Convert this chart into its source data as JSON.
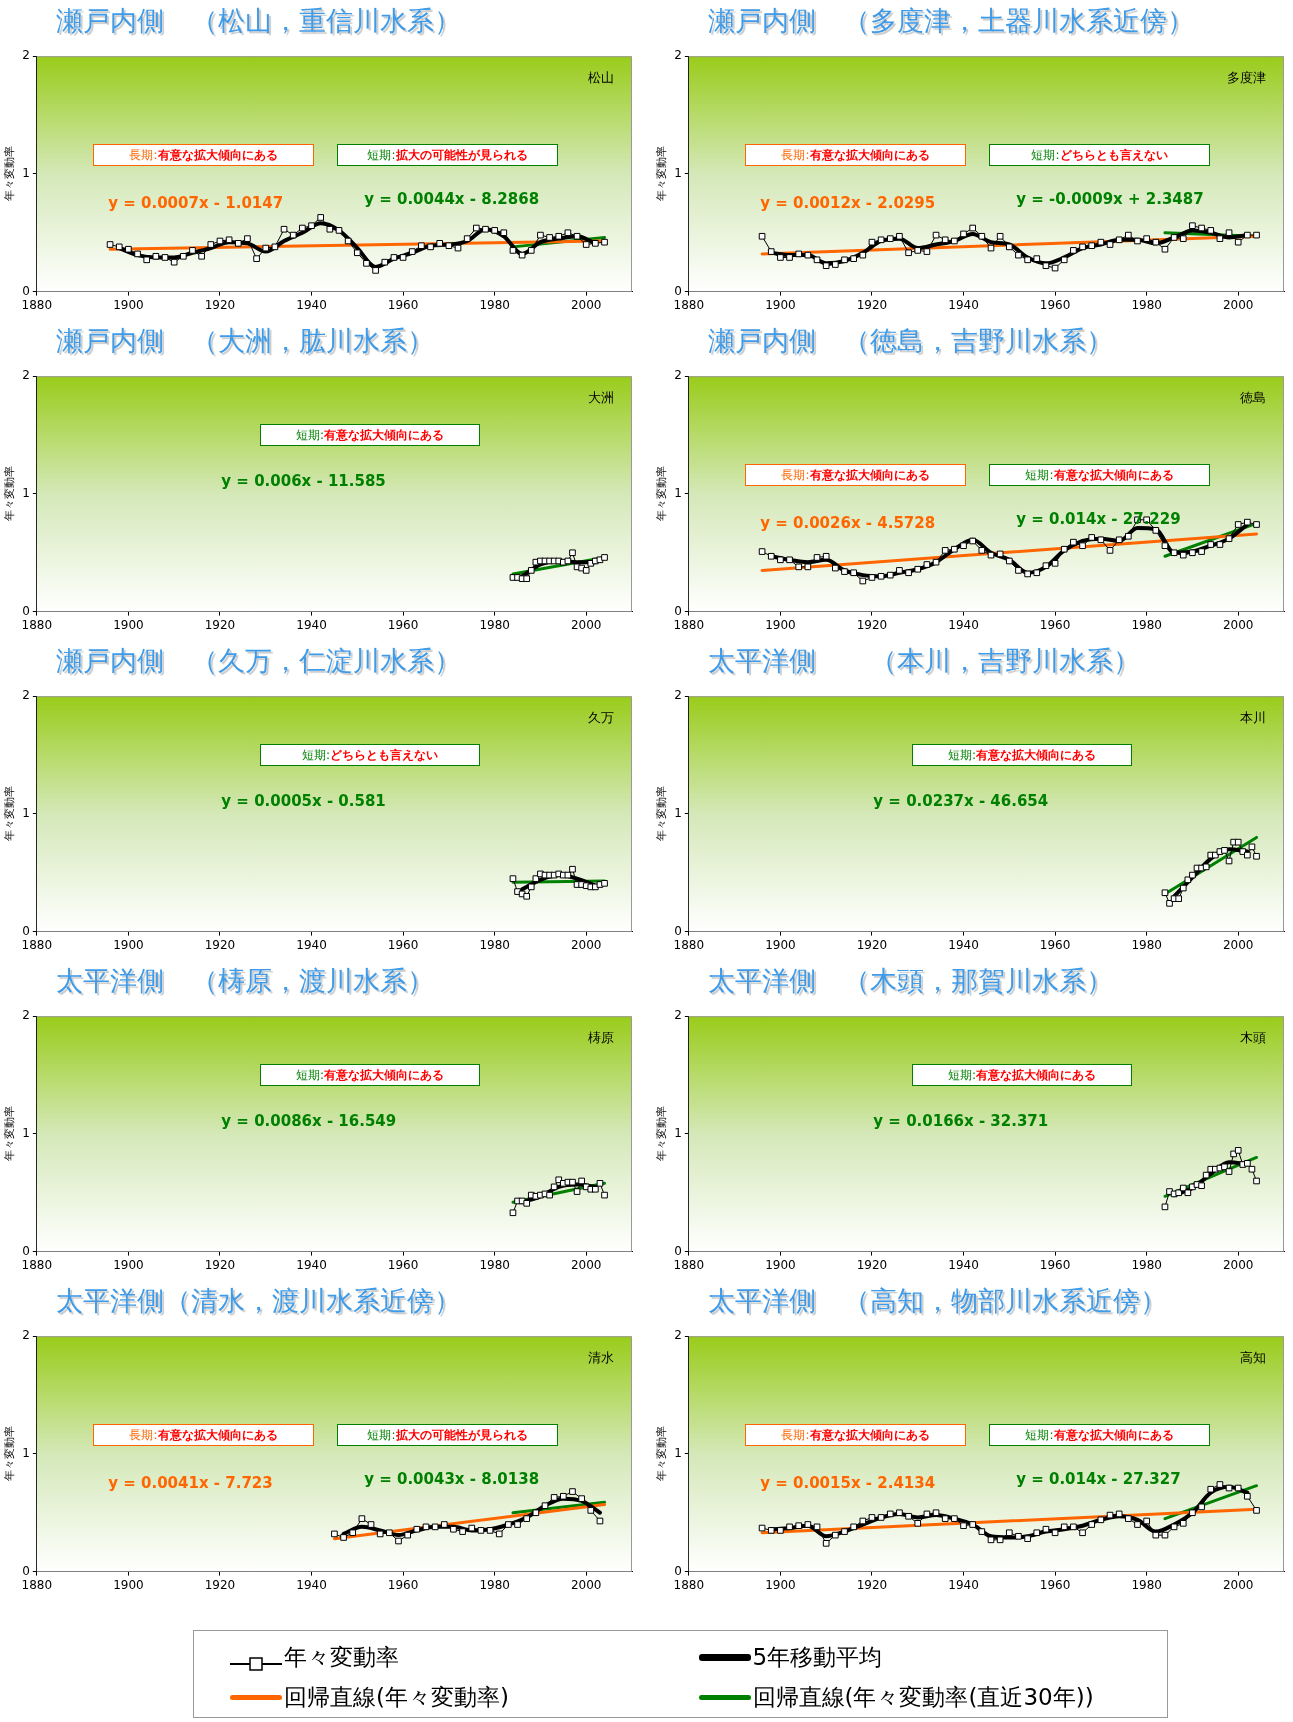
{
  "chart_data": [
    {
      "type": "line",
      "title": "瀬戸内側　（松山，重信川水系）",
      "ylabel": "年々変動率",
      "xlim": [
        1880,
        2010
      ],
      "xticks": [
        1880,
        1900,
        1920,
        1940,
        1960,
        1980,
        2000
      ],
      "ylim": [
        0,
        2
      ],
      "yticks": [
        0,
        1,
        2
      ],
      "grid": false,
      "annotations": [
        "松山",
        "長期:有意な拡大傾向にある",
        "短期:拡大の可能性が見られる",
        "y = 0.0007x - 1.0147",
        "y = 0.0044x - 8.2868"
      ],
      "series": [
        {
          "color": "#000000",
          "marker": "square",
          "x": [
            1896,
            1898,
            1900,
            1902,
            1904,
            1906,
            1908,
            1910,
            1912,
            1914,
            1916,
            1918,
            1920,
            1922,
            1924,
            1926,
            1928,
            1930,
            1932,
            1934,
            1936,
            1938,
            1940,
            1942,
            1944,
            1946,
            1948,
            1950,
            1952,
            1954,
            1956,
            1958,
            1960,
            1962,
            1964,
            1966,
            1968,
            1970,
            1972,
            1974,
            1976,
            1978,
            1980,
            1982,
            1984,
            1986,
            1988,
            1990,
            1992,
            1994,
            1996,
            1998,
            2000,
            2002,
            2004
          ],
          "values": [
            0.4,
            0.38,
            0.36,
            0.32,
            0.27,
            0.3,
            0.29,
            0.25,
            0.3,
            0.35,
            0.3,
            0.4,
            0.43,
            0.44,
            0.41,
            0.45,
            0.28,
            0.37,
            0.38,
            0.53,
            0.48,
            0.54,
            0.56,
            0.63,
            0.53,
            0.52,
            0.43,
            0.33,
            0.24,
            0.18,
            0.25,
            0.29,
            0.29,
            0.34,
            0.39,
            0.38,
            0.41,
            0.39,
            0.37,
            0.45,
            0.54,
            0.53,
            0.52,
            0.5,
            0.35,
            0.31,
            0.35,
            0.48,
            0.46,
            0.47,
            0.5,
            0.47,
            0.4,
            0.41,
            0.42
          ]
        },
        {
          "color": "#000000",
          "marker": "none",
          "x": [
            1898,
            1902,
            1906,
            1910,
            1914,
            1918,
            1922,
            1926,
            1930,
            1934,
            1938,
            1942,
            1946,
            1950,
            1954,
            1958,
            1962,
            1966,
            1970,
            1974,
            1978,
            1982,
            1986,
            1990,
            1994,
            1998,
            2002
          ],
          "values": [
            0.37,
            0.31,
            0.29,
            0.29,
            0.33,
            0.37,
            0.42,
            0.41,
            0.34,
            0.43,
            0.5,
            0.58,
            0.52,
            0.37,
            0.21,
            0.28,
            0.33,
            0.39,
            0.4,
            0.43,
            0.53,
            0.47,
            0.32,
            0.42,
            0.45,
            0.47,
            0.41
          ]
        },
        {
          "color": "#ff6600",
          "marker": "none",
          "x": [
            1896,
            2004
          ],
          "values": [
            0.36,
            0.43
          ]
        },
        {
          "color": "#008000",
          "marker": "none",
          "x": [
            1984,
            2004
          ],
          "values": [
            0.38,
            0.46
          ]
        }
      ]
    },
    {
      "type": "line",
      "title": "瀬戸内側　（多度津，土器川水系近傍）",
      "ylabel": "年々変動率",
      "xlim": [
        1880,
        2010
      ],
      "xticks": [
        1880,
        1900,
        1920,
        1940,
        1960,
        1980,
        2000
      ],
      "ylim": [
        0,
        2
      ],
      "yticks": [
        0,
        1,
        2
      ],
      "grid": false,
      "annotations": [
        "多度津",
        "長期:有意な拡大傾向にある",
        "短期:どちらとも言えない",
        "y = 0.0012x - 2.0295",
        "y = -0.0009x + 2.3487"
      ],
      "series": [
        {
          "color": "#000000",
          "marker": "square",
          "x": [
            1896,
            1898,
            1900,
            1902,
            1904,
            1906,
            1908,
            1910,
            1912,
            1914,
            1916,
            1918,
            1920,
            1922,
            1924,
            1926,
            1928,
            1930,
            1932,
            1934,
            1936,
            1938,
            1940,
            1942,
            1944,
            1946,
            1948,
            1950,
            1952,
            1954,
            1956,
            1958,
            1960,
            1962,
            1964,
            1966,
            1968,
            1970,
            1972,
            1974,
            1976,
            1978,
            1980,
            1982,
            1984,
            1986,
            1988,
            1990,
            1992,
            1994,
            1996,
            1998,
            2000,
            2002,
            2004
          ],
          "values": [
            0.47,
            0.34,
            0.29,
            0.29,
            0.32,
            0.31,
            0.27,
            0.22,
            0.23,
            0.27,
            0.28,
            0.31,
            0.42,
            0.44,
            0.45,
            0.47,
            0.33,
            0.35,
            0.34,
            0.48,
            0.44,
            0.43,
            0.49,
            0.54,
            0.47,
            0.37,
            0.47,
            0.38,
            0.31,
            0.27,
            0.28,
            0.22,
            0.2,
            0.27,
            0.35,
            0.38,
            0.39,
            0.42,
            0.4,
            0.44,
            0.48,
            0.43,
            0.45,
            0.42,
            0.36,
            0.46,
            0.45,
            0.56,
            0.54,
            0.52,
            0.45,
            0.5,
            0.42,
            0.48,
            0.48
          ]
        },
        {
          "color": "#000000",
          "marker": "none",
          "x": [
            1898,
            1902,
            1906,
            1910,
            1914,
            1918,
            1922,
            1926,
            1930,
            1934,
            1938,
            1942,
            1946,
            1950,
            1954,
            1958,
            1962,
            1966,
            1970,
            1974,
            1978,
            1982,
            1986,
            1990,
            1994,
            1998,
            2002
          ],
          "values": [
            0.33,
            0.31,
            0.31,
            0.24,
            0.26,
            0.33,
            0.43,
            0.45,
            0.37,
            0.4,
            0.43,
            0.49,
            0.42,
            0.4,
            0.29,
            0.24,
            0.29,
            0.37,
            0.4,
            0.44,
            0.44,
            0.41,
            0.46,
            0.52,
            0.5,
            0.46,
            0.48
          ]
        },
        {
          "color": "#ff6600",
          "marker": "none",
          "x": [
            1896,
            2004
          ],
          "values": [
            0.32,
            0.47
          ]
        },
        {
          "color": "#008000",
          "marker": "none",
          "x": [
            1984,
            2004
          ],
          "values": [
            0.5,
            0.47
          ]
        }
      ]
    },
    {
      "type": "line",
      "title": "瀬戸内側　（大洲，肱川水系）",
      "ylabel": "年々変動率",
      "xlim": [
        1880,
        2010
      ],
      "xticks": [
        1880,
        1900,
        1920,
        1940,
        1960,
        1980,
        2000
      ],
      "ylim": [
        0,
        2
      ],
      "yticks": [
        0,
        1,
        2
      ],
      "grid": false,
      "annotations": [
        "大洲",
        "短期:有意な拡大傾向にある",
        "y = 0.006x - 11.585"
      ],
      "series": [
        {
          "color": "#000000",
          "marker": "square",
          "x": [
            1984,
            1985,
            1986,
            1987,
            1988,
            1989,
            1990,
            1991,
            1992,
            1993,
            1994,
            1995,
            1996,
            1997,
            1998,
            1999,
            2000,
            2001,
            2002,
            2003,
            2004
          ],
          "values": [
            0.29,
            0.29,
            0.28,
            0.28,
            0.35,
            0.42,
            0.43,
            0.43,
            0.43,
            0.43,
            0.43,
            0.42,
            0.43,
            0.5,
            0.38,
            0.37,
            0.35,
            0.41,
            0.43,
            0.44,
            0.46
          ]
        },
        {
          "color": "#000000",
          "marker": "none",
          "x": [
            1986,
            1990,
            1994,
            1998,
            2002
          ],
          "values": [
            0.3,
            0.4,
            0.43,
            0.42,
            0.42
          ]
        },
        {
          "color": "#008000",
          "marker": "none",
          "x": [
            1984,
            2004
          ],
          "values": [
            0.32,
            0.46
          ]
        }
      ]
    },
    {
      "type": "line",
      "title": "瀬戸内側　（徳島，吉野川水系）",
      "ylabel": "年々変動率",
      "xlim": [
        1880,
        2010
      ],
      "xticks": [
        1880,
        1900,
        1920,
        1940,
        1960,
        1980,
        2000
      ],
      "ylim": [
        0,
        2
      ],
      "yticks": [
        0,
        1,
        2
      ],
      "grid": false,
      "annotations": [
        "徳島",
        "長期:有意な拡大傾向にある",
        "短期:有意な拡大傾向にある",
        "y = 0.0026x - 4.5728",
        "y = 0.014x - 27.229"
      ],
      "series": [
        {
          "color": "#000000",
          "marker": "square",
          "x": [
            1896,
            1898,
            1900,
            1902,
            1904,
            1906,
            1908,
            1910,
            1912,
            1914,
            1916,
            1918,
            1920,
            1922,
            1924,
            1926,
            1928,
            1930,
            1932,
            1934,
            1936,
            1938,
            1940,
            1942,
            1944,
            1946,
            1948,
            1950,
            1952,
            1954,
            1956,
            1958,
            1960,
            1962,
            1964,
            1966,
            1968,
            1970,
            1972,
            1974,
            1976,
            1978,
            1980,
            1982,
            1984,
            1986,
            1988,
            1990,
            1992,
            1994,
            1996,
            1998,
            2000,
            2002,
            2004
          ],
          "values": [
            0.51,
            0.47,
            0.44,
            0.44,
            0.38,
            0.38,
            0.46,
            0.47,
            0.37,
            0.34,
            0.33,
            0.26,
            0.29,
            0.3,
            0.31,
            0.35,
            0.33,
            0.36,
            0.4,
            0.42,
            0.52,
            0.53,
            0.56,
            0.6,
            0.52,
            0.48,
            0.49,
            0.43,
            0.35,
            0.32,
            0.33,
            0.39,
            0.41,
            0.53,
            0.59,
            0.56,
            0.63,
            0.61,
            0.52,
            0.61,
            0.64,
            0.78,
            0.78,
            0.69,
            0.56,
            0.5,
            0.48,
            0.5,
            0.51,
            0.57,
            0.57,
            0.62,
            0.74,
            0.76,
            0.74
          ]
        },
        {
          "color": "#000000",
          "marker": "none",
          "x": [
            1898,
            1902,
            1906,
            1910,
            1914,
            1918,
            1922,
            1926,
            1930,
            1934,
            1938,
            1942,
            1946,
            1950,
            1954,
            1958,
            1962,
            1966,
            1970,
            1974,
            1978,
            1982,
            1986,
            1990,
            1994,
            1998,
            2002
          ],
          "values": [
            0.47,
            0.44,
            0.42,
            0.44,
            0.35,
            0.31,
            0.3,
            0.33,
            0.36,
            0.42,
            0.53,
            0.61,
            0.5,
            0.44,
            0.33,
            0.38,
            0.52,
            0.6,
            0.62,
            0.6,
            0.71,
            0.7,
            0.5,
            0.51,
            0.56,
            0.62,
            0.74
          ]
        },
        {
          "color": "#ff6600",
          "marker": "none",
          "x": [
            1896,
            2004
          ],
          "values": [
            0.35,
            0.66
          ]
        },
        {
          "color": "#008000",
          "marker": "none",
          "x": [
            1984,
            2004
          ],
          "values": [
            0.47,
            0.75
          ]
        }
      ]
    },
    {
      "type": "line",
      "title": "瀬戸内側　（久万，仁淀川水系）",
      "ylabel": "年々変動率",
      "xlim": [
        1880,
        2010
      ],
      "xticks": [
        1880,
        1900,
        1920,
        1940,
        1960,
        1980,
        2000
      ],
      "ylim": [
        0,
        2
      ],
      "yticks": [
        0,
        1,
        2
      ],
      "grid": false,
      "annotations": [
        "久万",
        "短期:どちらとも言えない",
        "y = 0.0005x - 0.581"
      ],
      "series": [
        {
          "color": "#000000",
          "marker": "square",
          "x": [
            1984,
            1985,
            1986,
            1987,
            1988,
            1989,
            1990,
            1991,
            1992,
            1993,
            1994,
            1995,
            1996,
            1997,
            1998,
            1999,
            2000,
            2001,
            2002,
            2003,
            2004
          ],
          "values": [
            0.45,
            0.34,
            0.32,
            0.3,
            0.38,
            0.45,
            0.49,
            0.48,
            0.48,
            0.48,
            0.49,
            0.48,
            0.48,
            0.53,
            0.4,
            0.4,
            0.39,
            0.38,
            0.38,
            0.4,
            0.41
          ]
        },
        {
          "color": "#000000",
          "marker": "none",
          "x": [
            1986,
            1990,
            1994,
            1998,
            2002
          ],
          "values": [
            0.36,
            0.44,
            0.48,
            0.45,
            0.39
          ]
        },
        {
          "color": "#008000",
          "marker": "none",
          "x": [
            1984,
            2004
          ],
          "values": [
            0.42,
            0.43
          ]
        }
      ]
    },
    {
      "type": "line",
      "title": "太平洋側　　（本川，吉野川水系）",
      "ylabel": "年々変動率",
      "xlim": [
        1880,
        2010
      ],
      "xticks": [
        1880,
        1900,
        1920,
        1940,
        1960,
        1980,
        2000
      ],
      "ylim": [
        0,
        2
      ],
      "yticks": [
        0,
        1,
        2
      ],
      "grid": false,
      "annotations": [
        "本川",
        "短期:有意な拡大傾向にある",
        "y = 0.0237x - 46.654"
      ],
      "series": [
        {
          "color": "#000000",
          "marker": "square",
          "x": [
            1984,
            1985,
            1986,
            1987,
            1988,
            1989,
            1990,
            1991,
            1992,
            1993,
            1994,
            1995,
            1996,
            1997,
            1998,
            1999,
            2000,
            2001,
            2002,
            2003,
            2004
          ],
          "values": [
            0.33,
            0.24,
            0.28,
            0.28,
            0.37,
            0.44,
            0.48,
            0.54,
            0.54,
            0.55,
            0.65,
            0.65,
            0.68,
            0.69,
            0.6,
            0.76,
            0.76,
            0.68,
            0.65,
            0.72,
            0.64
          ]
        },
        {
          "color": "#000000",
          "marker": "none",
          "x": [
            1986,
            1990,
            1994,
            1998,
            2002
          ],
          "values": [
            0.3,
            0.46,
            0.62,
            0.7,
            0.68
          ]
        },
        {
          "color": "#008000",
          "marker": "none",
          "x": [
            1984,
            2004
          ],
          "values": [
            0.32,
            0.8
          ]
        }
      ]
    },
    {
      "type": "line",
      "title": "太平洋側　（梼原，渡川水系）",
      "ylabel": "年々変動率",
      "xlim": [
        1880,
        2010
      ],
      "xticks": [
        1880,
        1900,
        1920,
        1940,
        1960,
        1980,
        2000
      ],
      "ylim": [
        0,
        2
      ],
      "yticks": [
        0,
        1,
        2
      ],
      "grid": false,
      "annotations": [
        "梼原",
        "短期:有意な拡大傾向にある",
        "y = 0.0086x - 16.549"
      ],
      "series": [
        {
          "color": "#000000",
          "marker": "square",
          "x": [
            1984,
            1985,
            1986,
            1987,
            1988,
            1989,
            1990,
            1991,
            1992,
            1993,
            1994,
            1995,
            1996,
            1997,
            1998,
            1999,
            2000,
            2001,
            2002,
            2003,
            2004
          ],
          "values": [
            0.33,
            0.43,
            0.43,
            0.41,
            0.48,
            0.47,
            0.48,
            0.49,
            0.48,
            0.55,
            0.61,
            0.58,
            0.59,
            0.59,
            0.51,
            0.6,
            0.55,
            0.53,
            0.53,
            0.58,
            0.48
          ]
        },
        {
          "color": "#000000",
          "marker": "none",
          "x": [
            1986,
            1990,
            1994,
            1998,
            2002
          ],
          "values": [
            0.42,
            0.47,
            0.55,
            0.57,
            0.55
          ]
        },
        {
          "color": "#008000",
          "marker": "none",
          "x": [
            1984,
            2004
          ],
          "values": [
            0.42,
            0.58
          ]
        }
      ]
    },
    {
      "type": "line",
      "title": "太平洋側　（木頭，那賀川水系）",
      "ylabel": "年々変動率",
      "xlim": [
        1880,
        2010
      ],
      "xticks": [
        1880,
        1900,
        1920,
        1940,
        1960,
        1980,
        2000
      ],
      "ylim": [
        0,
        2
      ],
      "yticks": [
        0,
        1,
        2
      ],
      "grid": false,
      "annotations": [
        "木頭",
        "短期:有意な拡大傾向にある",
        "y = 0.0166x - 32.371"
      ],
      "series": [
        {
          "color": "#000000",
          "marker": "square",
          "x": [
            1984,
            1985,
            1986,
            1987,
            1988,
            1989,
            1990,
            1991,
            1992,
            1993,
            1994,
            1995,
            1996,
            1997,
            1998,
            1999,
            2000,
            2001,
            2002,
            2003,
            2004
          ],
          "values": [
            0.38,
            0.51,
            0.49,
            0.5,
            0.54,
            0.5,
            0.55,
            0.57,
            0.56,
            0.65,
            0.7,
            0.7,
            0.71,
            0.72,
            0.68,
            0.83,
            0.86,
            0.74,
            0.75,
            0.7,
            0.6
          ]
        },
        {
          "color": "#000000",
          "marker": "none",
          "x": [
            1986,
            1990,
            1994,
            1998,
            2002
          ],
          "values": [
            0.48,
            0.54,
            0.66,
            0.76,
            0.74
          ]
        },
        {
          "color": "#008000",
          "marker": "none",
          "x": [
            1984,
            2004
          ],
          "values": [
            0.47,
            0.8
          ]
        }
      ]
    },
    {
      "type": "line",
      "title": "太平洋側（清水，渡川水系近傍）",
      "ylabel": "年々変動率",
      "xlim": [
        1880,
        2010
      ],
      "xticks": [
        1880,
        1900,
        1920,
        1940,
        1960,
        1980,
        2000
      ],
      "ylim": [
        0,
        2
      ],
      "yticks": [
        0,
        1,
        2
      ],
      "grid": false,
      "annotations": [
        "清水",
        "長期:有意な拡大傾向にある",
        "短期:拡大の可能性が見られる",
        "y = 0.0041x - 7.723",
        "y = 0.0043x - 8.0138"
      ],
      "series": [
        {
          "color": "#000000",
          "marker": "square",
          "x": [
            1945,
            1947,
            1949,
            1951,
            1953,
            1955,
            1957,
            1959,
            1961,
            1963,
            1965,
            1967,
            1969,
            1971,
            1973,
            1975,
            1977,
            1979,
            1981,
            1983,
            1985,
            1987,
            1989,
            1991,
            1993,
            1995,
            1997,
            1999,
            2001,
            2003
          ],
          "values": [
            0.32,
            0.29,
            0.33,
            0.45,
            0.4,
            0.32,
            0.33,
            0.26,
            0.31,
            0.36,
            0.38,
            0.38,
            0.4,
            0.36,
            0.34,
            0.37,
            0.35,
            0.35,
            0.32,
            0.4,
            0.4,
            0.45,
            0.5,
            0.56,
            0.63,
            0.64,
            0.68,
            0.62,
            0.52,
            0.43
          ]
        },
        {
          "color": "#000000",
          "marker": "none",
          "x": [
            1947,
            1951,
            1955,
            1959,
            1963,
            1967,
            1971,
            1975,
            1979,
            1983,
            1987,
            1991,
            1995,
            1999,
            2003
          ],
          "values": [
            0.32,
            0.38,
            0.35,
            0.31,
            0.35,
            0.38,
            0.38,
            0.35,
            0.36,
            0.4,
            0.46,
            0.56,
            0.62,
            0.6,
            0.5
          ]
        },
        {
          "color": "#ff6600",
          "marker": "none",
          "x": [
            1945,
            2004
          ],
          "values": [
            0.28,
            0.57
          ]
        },
        {
          "color": "#008000",
          "marker": "none",
          "x": [
            1984,
            2004
          ],
          "values": [
            0.5,
            0.59
          ]
        }
      ]
    },
    {
      "type": "line",
      "title": "太平洋側　（高知，物部川水系近傍）",
      "ylabel": "年々変動率",
      "xlim": [
        1880,
        2010
      ],
      "xticks": [
        1880,
        1900,
        1920,
        1940,
        1960,
        1980,
        2000
      ],
      "ylim": [
        0,
        2
      ],
      "yticks": [
        0,
        1,
        2
      ],
      "grid": false,
      "legend": "bottom",
      "annotations": [
        "高知",
        "長期:有意な拡大傾向にある",
        "短期:有意な拡大傾向にある",
        "y = 0.0015x - 2.4134",
        "y = 0.014x - 27.327"
      ],
      "series": [
        {
          "name": "年々変動率",
          "color": "#000000",
          "marker": "square",
          "x": [
            1896,
            1898,
            1900,
            1902,
            1904,
            1906,
            1908,
            1910,
            1912,
            1914,
            1916,
            1918,
            1920,
            1922,
            1924,
            1926,
            1928,
            1930,
            1932,
            1934,
            1936,
            1938,
            1940,
            1942,
            1944,
            1946,
            1948,
            1950,
            1952,
            1954,
            1956,
            1958,
            1960,
            1962,
            1964,
            1966,
            1968,
            1970,
            1972,
            1974,
            1976,
            1978,
            1980,
            1982,
            1984,
            1986,
            1988,
            1990,
            1992,
            1994,
            1996,
            1998,
            2000,
            2002,
            2004
          ],
          "values": [
            0.37,
            0.35,
            0.35,
            0.38,
            0.39,
            0.4,
            0.38,
            0.24,
            0.31,
            0.34,
            0.38,
            0.43,
            0.46,
            0.46,
            0.49,
            0.5,
            0.47,
            0.41,
            0.49,
            0.5,
            0.45,
            0.45,
            0.39,
            0.4,
            0.34,
            0.27,
            0.27,
            0.33,
            0.3,
            0.28,
            0.33,
            0.36,
            0.33,
            0.38,
            0.38,
            0.33,
            0.4,
            0.44,
            0.48,
            0.49,
            0.45,
            0.4,
            0.43,
            0.31,
            0.31,
            0.38,
            0.41,
            0.5,
            0.55,
            0.7,
            0.74,
            0.71,
            0.71,
            0.64,
            0.52
          ]
        },
        {
          "name": "5年移動平均",
          "color": "#000000",
          "marker": "none",
          "x": [
            1898,
            1902,
            1906,
            1910,
            1914,
            1918,
            1922,
            1926,
            1930,
            1934,
            1938,
            1942,
            1946,
            1950,
            1954,
            1958,
            1962,
            1966,
            1970,
            1974,
            1978,
            1982,
            1986,
            1990,
            1994,
            1998,
            2002
          ],
          "values": [
            0.36,
            0.37,
            0.39,
            0.3,
            0.34,
            0.4,
            0.46,
            0.49,
            0.46,
            0.48,
            0.45,
            0.4,
            0.3,
            0.29,
            0.3,
            0.34,
            0.36,
            0.39,
            0.44,
            0.47,
            0.44,
            0.34,
            0.4,
            0.5,
            0.67,
            0.72,
            0.67
          ]
        },
        {
          "name": "回帰直線(年々変動率)",
          "color": "#ff6600",
          "marker": "none",
          "x": [
            1896,
            2004
          ],
          "values": [
            0.33,
            0.53
          ]
        },
        {
          "name": "回帰直線(年々変動率(直近30年))",
          "color": "#008000",
          "marker": "none",
          "x": [
            1984,
            2004
          ],
          "values": [
            0.45,
            0.73
          ]
        }
      ]
    }
  ]
}
